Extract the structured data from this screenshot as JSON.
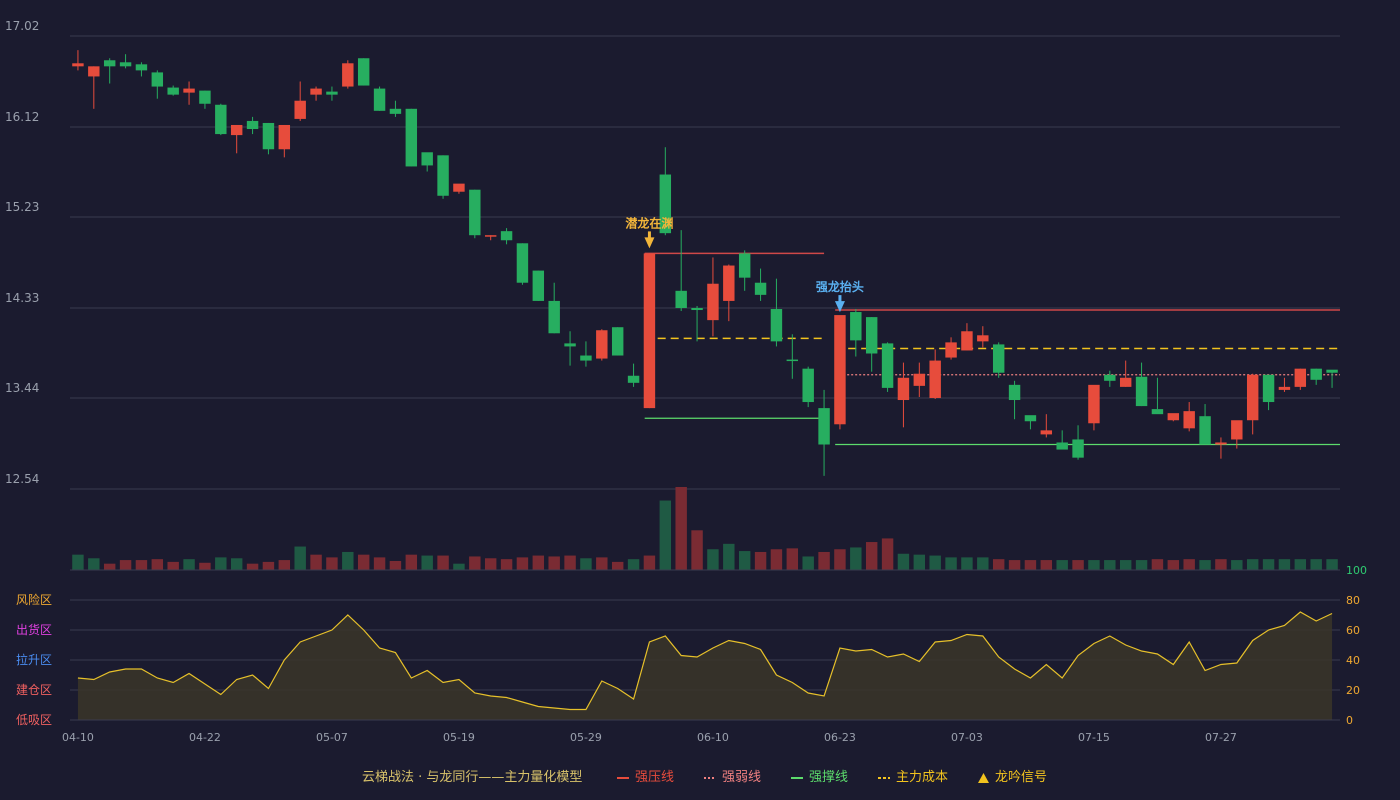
{
  "colors": {
    "up": "#e74c3c",
    "down": "#27ae60",
    "grid": "#3a3b4f",
    "axis_text": "#9aa0ad",
    "resistance": "#d04848",
    "weak": "#f08080",
    "support": "#5cdc6c",
    "cost": "#f2c31e",
    "qianlong": "#f2b53a",
    "qianglong": "#5ab0f0",
    "osc_line": "#e6c02a",
    "osc_fill": "#3a3528",
    "zone_risk": "#f0a830",
    "zone_ship": "#e040e0",
    "zone_rise": "#4a8cf0",
    "zone_build": "#f06060",
    "zone_low": "#f06060",
    "osc_tick_top": "#2ecc71",
    "osc_tick": "#f0a830"
  },
  "chart_data": {
    "type": "candlestick",
    "y_ticks": [
      "17.02",
      "16.12",
      "15.23",
      "14.33",
      "13.44",
      "12.54"
    ],
    "ylim": [
      12.54,
      17.02
    ],
    "x_labels": [
      {
        "index": 0,
        "label": "04-10"
      },
      {
        "index": 8,
        "label": "04-22"
      },
      {
        "index": 16,
        "label": "05-07"
      },
      {
        "index": 24,
        "label": "05-19"
      },
      {
        "index": 32,
        "label": "05-29"
      },
      {
        "index": 40,
        "label": "06-10"
      },
      {
        "index": 48,
        "label": "06-23"
      },
      {
        "index": 56,
        "label": "07-03"
      },
      {
        "index": 64,
        "label": "07-15"
      },
      {
        "index": 72,
        "label": "07-27"
      }
    ],
    "candles": [
      [
        16.72,
        16.75,
        16.88,
        16.68
      ],
      [
        16.62,
        16.72,
        16.72,
        16.3
      ],
      [
        16.78,
        16.72,
        16.8,
        16.55
      ],
      [
        16.76,
        16.72,
        16.84,
        16.7
      ],
      [
        16.74,
        16.68,
        16.76,
        16.62
      ],
      [
        16.66,
        16.52,
        16.68,
        16.4
      ],
      [
        16.51,
        16.44,
        16.53,
        16.43
      ],
      [
        16.46,
        16.5,
        16.57,
        16.34
      ],
      [
        16.48,
        16.35,
        16.48,
        16.3
      ],
      [
        16.34,
        16.05,
        16.35,
        16.04
      ],
      [
        16.04,
        16.14,
        16.14,
        15.86
      ],
      [
        16.18,
        16.1,
        16.22,
        16.05
      ],
      [
        16.16,
        15.9,
        16.16,
        15.85
      ],
      [
        15.9,
        16.14,
        16.14,
        15.82
      ],
      [
        16.2,
        16.38,
        16.57,
        16.18
      ],
      [
        16.44,
        16.5,
        16.52,
        16.38
      ],
      [
        16.47,
        16.44,
        16.52,
        16.38
      ],
      [
        16.52,
        16.75,
        16.78,
        16.5
      ],
      [
        16.8,
        16.53,
        16.8,
        16.53
      ],
      [
        16.5,
        16.28,
        16.52,
        16.28
      ],
      [
        16.3,
        16.25,
        16.38,
        16.22
      ],
      [
        16.3,
        15.73,
        16.3,
        15.73
      ],
      [
        15.87,
        15.74,
        15.78,
        15.68
      ],
      [
        15.84,
        15.44,
        15.84,
        15.41
      ],
      [
        15.48,
        15.56,
        15.54,
        15.46
      ],
      [
        15.5,
        15.05,
        15.5,
        15.02
      ],
      [
        15.05,
        15.05,
        15.05,
        15.0
      ],
      [
        15.09,
        15.0,
        15.12,
        14.96
      ],
      [
        14.97,
        14.58,
        14.97,
        14.56
      ],
      [
        14.7,
        14.4,
        14.7,
        14.4
      ],
      [
        14.4,
        14.08,
        14.58,
        14.08
      ],
      [
        13.98,
        13.95,
        14.1,
        13.76
      ],
      [
        13.86,
        13.81,
        14.0,
        13.75
      ],
      [
        13.83,
        14.11,
        14.12,
        13.81
      ],
      [
        14.14,
        13.86,
        14.14,
        13.86
      ],
      [
        13.66,
        13.59,
        13.78,
        13.55
      ],
      [
        13.34,
        14.87,
        14.87,
        13.34
      ],
      [
        15.65,
        15.07,
        15.92,
        15.05
      ],
      [
        14.5,
        14.33,
        15.1,
        14.3
      ],
      [
        14.33,
        14.31,
        14.35,
        14.0
      ],
      [
        14.21,
        14.57,
        14.83,
        14.05
      ],
      [
        14.4,
        14.75,
        14.76,
        14.2
      ],
      [
        14.87,
        14.63,
        14.9,
        14.5
      ],
      [
        14.58,
        14.46,
        14.72,
        14.4
      ],
      [
        14.32,
        14.0,
        14.62,
        13.95
      ],
      [
        13.82,
        13.81,
        14.07,
        13.63
      ],
      [
        13.73,
        13.4,
        13.75,
        13.35
      ],
      [
        13.34,
        12.98,
        13.52,
        12.67
      ],
      [
        13.18,
        14.26,
        14.24,
        13.13
      ],
      [
        14.29,
        14.01,
        14.32,
        13.85
      ],
      [
        14.24,
        13.88,
        14.24,
        13.7
      ],
      [
        13.98,
        13.54,
        13.99,
        13.5
      ],
      [
        13.42,
        13.64,
        13.79,
        13.15
      ],
      [
        13.56,
        13.68,
        13.79,
        13.45
      ],
      [
        13.44,
        13.81,
        13.92,
        13.43
      ],
      [
        13.84,
        13.99,
        14.04,
        13.82
      ],
      [
        13.91,
        14.1,
        14.18,
        13.91
      ],
      [
        14.0,
        14.06,
        14.15,
        13.94
      ],
      [
        13.97,
        13.69,
        13.99,
        13.64
      ],
      [
        13.57,
        13.42,
        13.61,
        13.23
      ],
      [
        13.27,
        13.21,
        13.25,
        13.13
      ],
      [
        13.08,
        13.12,
        13.28,
        13.05
      ],
      [
        13.0,
        12.93,
        13.12,
        12.98
      ],
      [
        13.03,
        12.85,
        13.17,
        12.83
      ],
      [
        13.19,
        13.57,
        13.5,
        13.12
      ],
      [
        13.67,
        13.61,
        13.71,
        13.55
      ],
      [
        13.55,
        13.64,
        13.81,
        13.55
      ],
      [
        13.65,
        13.36,
        13.79,
        13.36
      ],
      [
        13.33,
        13.28,
        13.64,
        13.33
      ],
      [
        13.22,
        13.29,
        13.28,
        13.21
      ],
      [
        13.14,
        13.31,
        13.4,
        13.11
      ],
      [
        13.26,
        12.98,
        13.38,
        12.99
      ],
      [
        12.98,
        13.0,
        13.05,
        12.84
      ],
      [
        13.03,
        13.22,
        13.17,
        12.94
      ],
      [
        13.22,
        13.67,
        13.68,
        13.08
      ],
      [
        13.67,
        13.4,
        13.67,
        13.32
      ],
      [
        13.52,
        13.55,
        13.64,
        13.5
      ],
      [
        13.55,
        13.73,
        13.73,
        13.52
      ],
      [
        13.73,
        13.62,
        13.73,
        13.57
      ],
      [
        13.72,
        13.69,
        13.7,
        13.54
      ]
    ],
    "volumes": [
      17,
      13,
      7,
      11,
      11,
      12,
      9,
      12,
      8,
      14,
      13,
      7,
      9,
      11,
      26,
      17,
      14,
      20,
      17,
      14,
      10,
      17,
      16,
      16,
      7,
      15,
      13,
      12,
      14,
      16,
      15,
      16,
      13,
      14,
      9,
      12,
      16,
      77,
      92,
      44,
      23,
      29,
      21,
      20,
      23,
      24,
      15,
      20,
      23,
      25,
      31,
      35,
      18,
      17,
      16,
      14,
      14,
      14,
      12,
      11,
      11,
      11,
      11,
      11,
      11,
      11,
      11,
      11,
      12,
      11,
      12,
      11,
      12,
      11,
      12,
      12,
      12,
      12,
      12,
      12
    ],
    "volume_dir": [
      "d",
      "d",
      "u",
      "u",
      "u",
      "u",
      "u",
      "d",
      "u",
      "d",
      "d",
      "u",
      "u",
      "u",
      "d",
      "u",
      "u",
      "d",
      "u",
      "u",
      "u",
      "u",
      "d",
      "u",
      "d",
      "u",
      "u",
      "u",
      "u",
      "u",
      "u",
      "u",
      "d",
      "u",
      "u",
      "d",
      "u",
      "d",
      "u",
      "u",
      "d",
      "d",
      "d",
      "u",
      "u",
      "u",
      "d",
      "u",
      "u",
      "d",
      "u",
      "u",
      "d",
      "d",
      "d",
      "d",
      "d",
      "d",
      "u",
      "u",
      "u",
      "u",
      "d",
      "u",
      "d",
      "d",
      "d",
      "d",
      "u",
      "u",
      "u",
      "d",
      "u",
      "d",
      "d",
      "d",
      "d",
      "d",
      "d",
      "d"
    ],
    "lines": {
      "resistance_1": {
        "price": 14.87,
        "from": 36,
        "to": 47
      },
      "cost_1": {
        "price": 14.03,
        "from": 36,
        "to": 47
      },
      "support_1": {
        "price": 13.24,
        "from": 36,
        "to": 47
      },
      "resistance_2": {
        "price": 14.31,
        "from": 48,
        "to": 79
      },
      "cost_2": {
        "price": 13.93,
        "from": 48,
        "to": 79
      },
      "weak_2": {
        "price": 13.67,
        "from": 48,
        "to": 79
      },
      "support_2": {
        "price": 12.98,
        "from": 48,
        "to": 79
      }
    },
    "signals": [
      {
        "index": 36,
        "label": "潜龙在渊",
        "kind": "qianlong"
      },
      {
        "index": 48,
        "label": "强龙抬头",
        "kind": "qianglong"
      }
    ],
    "osc_ticks": [
      "100",
      "80",
      "60",
      "40",
      "20",
      "0"
    ],
    "osc_zones": [
      "风险区",
      "出货区",
      "拉升区",
      "建仓区",
      "低吸区"
    ],
    "osc_values": [
      28,
      27,
      32,
      34,
      34,
      28,
      25,
      31,
      24,
      17,
      27,
      30,
      21,
      40,
      52,
      56,
      60,
      70,
      60,
      48,
      45,
      28,
      33,
      25,
      27,
      18,
      16,
      15,
      12,
      9,
      8,
      7,
      7,
      26,
      21,
      14,
      52,
      56,
      43,
      42,
      48,
      53,
      51,
      47,
      30,
      25,
      18,
      16,
      48,
      46,
      47,
      42,
      44,
      39,
      52,
      53,
      57,
      56,
      42,
      34,
      28,
      37,
      28,
      43,
      51,
      56,
      50,
      46,
      44,
      37,
      52,
      33,
      37,
      38,
      53,
      60,
      63,
      72,
      66,
      71
    ]
  },
  "legend": {
    "title": "云梯战法 · 与龙同行——主力量化模型",
    "strong_pressure": "强压线",
    "strong_weak": "强弱线",
    "strong_support": "强撑线",
    "main_cost": "主力成本",
    "dragon_signal": "龙吟信号"
  }
}
